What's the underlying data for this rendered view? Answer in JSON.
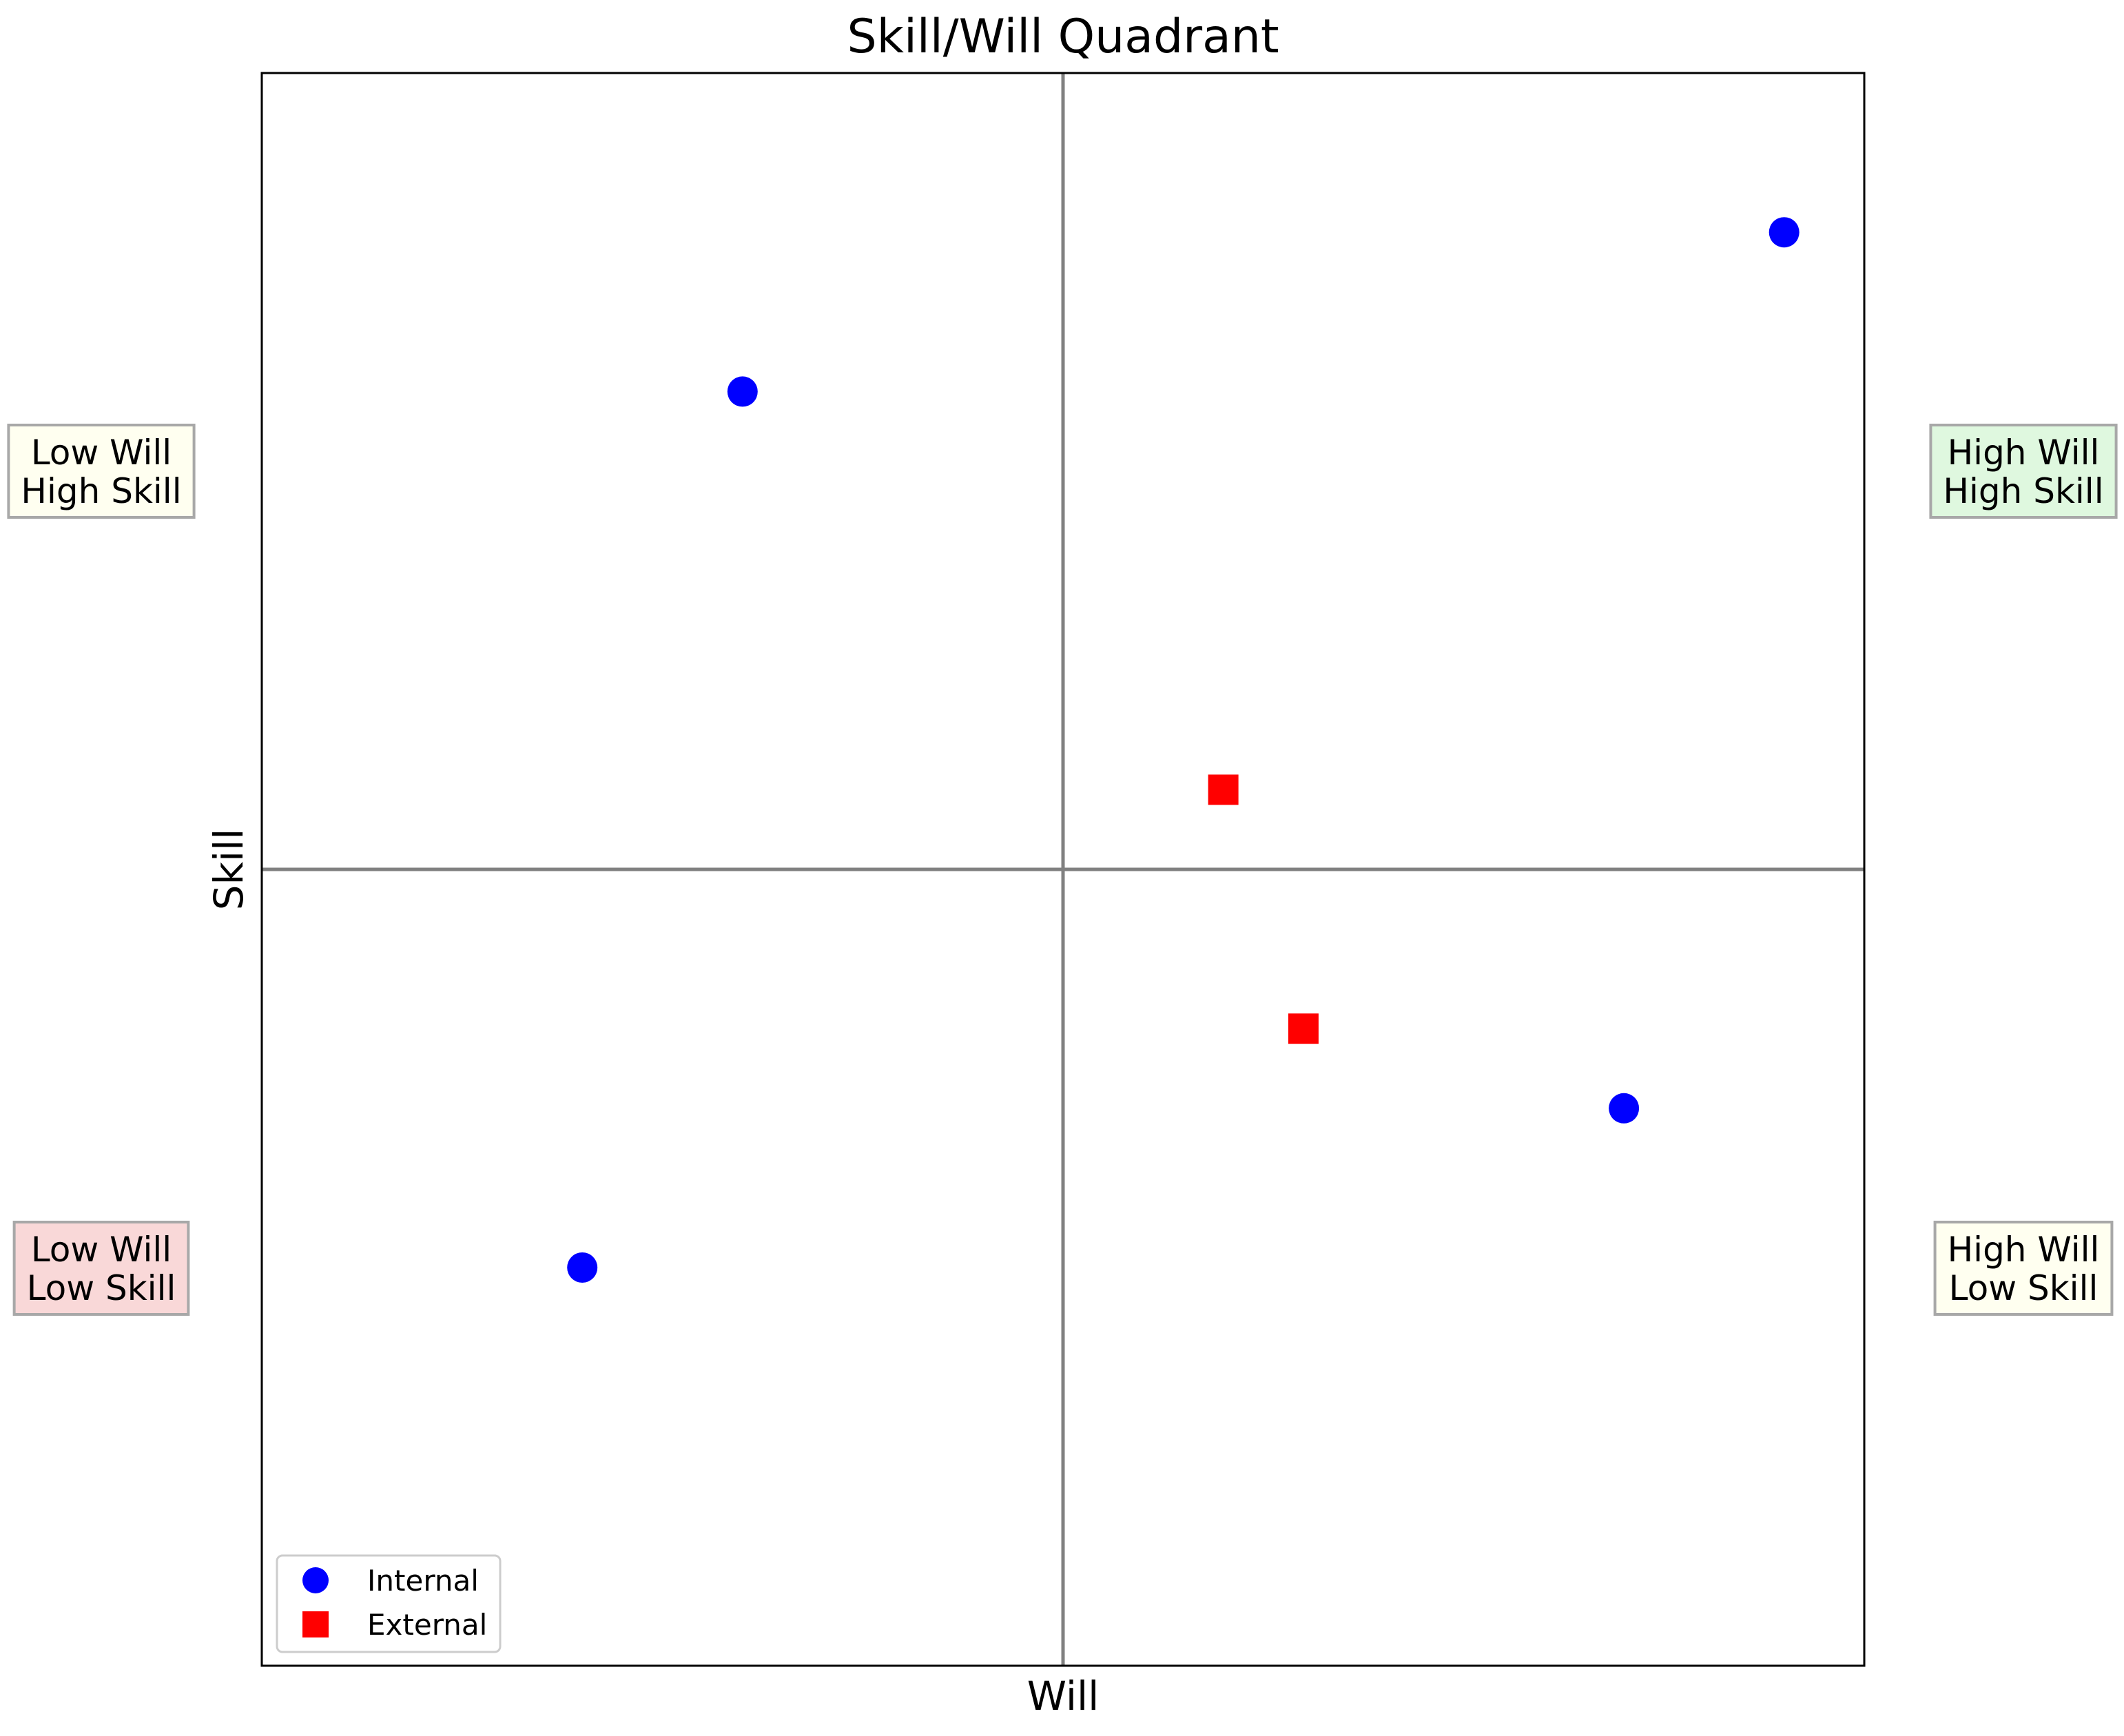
{
  "chart_data": {
    "type": "scatter",
    "title": "Skill/Will Quadrant",
    "xlabel": "Will",
    "ylabel": "Skill",
    "xlim": [
      0,
      10
    ],
    "ylim": [
      0,
      10
    ],
    "grid": false,
    "divider": {
      "x": 5,
      "y": 5,
      "color": "#808080"
    },
    "series": [
      {
        "name": "Internal",
        "marker": "circle",
        "color": "#0000ff",
        "points": [
          {
            "x": 3.0,
            "y": 8.0
          },
          {
            "x": 9.5,
            "y": 9.0
          },
          {
            "x": 2.0,
            "y": 2.5
          },
          {
            "x": 8.5,
            "y": 3.5
          }
        ]
      },
      {
        "name": "External",
        "marker": "square",
        "color": "#ff0000",
        "points": [
          {
            "x": 6.0,
            "y": 5.5
          },
          {
            "x": 6.5,
            "y": 4.0
          }
        ]
      }
    ],
    "legend": {
      "position": "lower-left"
    },
    "quadrant_labels": [
      {
        "name": "low-will-high-skill",
        "lines": [
          "Low Will",
          "High Skill"
        ],
        "side": "left",
        "level": "upper",
        "fill": "#fffff0"
      },
      {
        "name": "high-will-high-skill",
        "lines": [
          "High Will",
          "High Skill"
        ],
        "side": "right",
        "level": "upper",
        "fill": "#dff8df"
      },
      {
        "name": "low-will-low-skill",
        "lines": [
          "Low Will",
          "Low Skill"
        ],
        "side": "left",
        "level": "lower",
        "fill": "#f9d8d8"
      },
      {
        "name": "high-will-low-skill",
        "lines": [
          "High Will",
          "Low Skill"
        ],
        "side": "right",
        "level": "lower",
        "fill": "#fffff0"
      }
    ]
  }
}
